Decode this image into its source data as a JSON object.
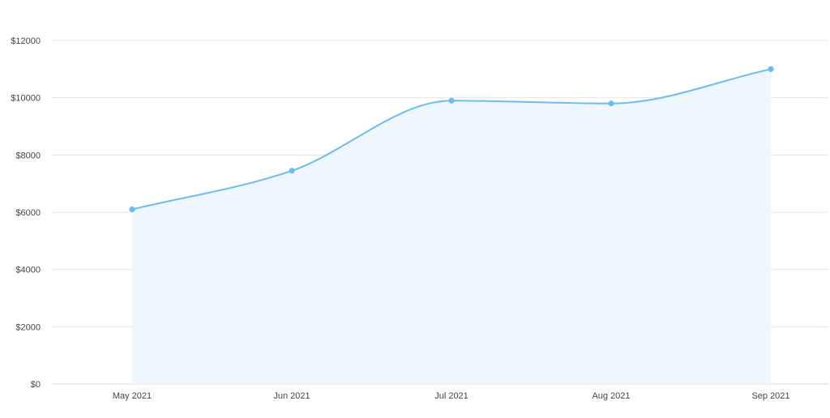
{
  "chart_data": {
    "type": "area",
    "categories": [
      "May 2021",
      "Jun 2021",
      "Jul 2021",
      "Aug 2021",
      "Sep 2021"
    ],
    "series": [
      {
        "values": [
          6100,
          7450,
          9900,
          9800,
          11000
        ]
      }
    ],
    "ylim": [
      0,
      12000
    ],
    "yticks": [
      0,
      2000,
      4000,
      6000,
      8000,
      10000,
      12000
    ],
    "ytick_prefix": "$",
    "grid": true,
    "legend": "none",
    "colors": {
      "line": "#6cbcf0",
      "area": "#eef7fd",
      "point": "#6cbcf0"
    }
  }
}
